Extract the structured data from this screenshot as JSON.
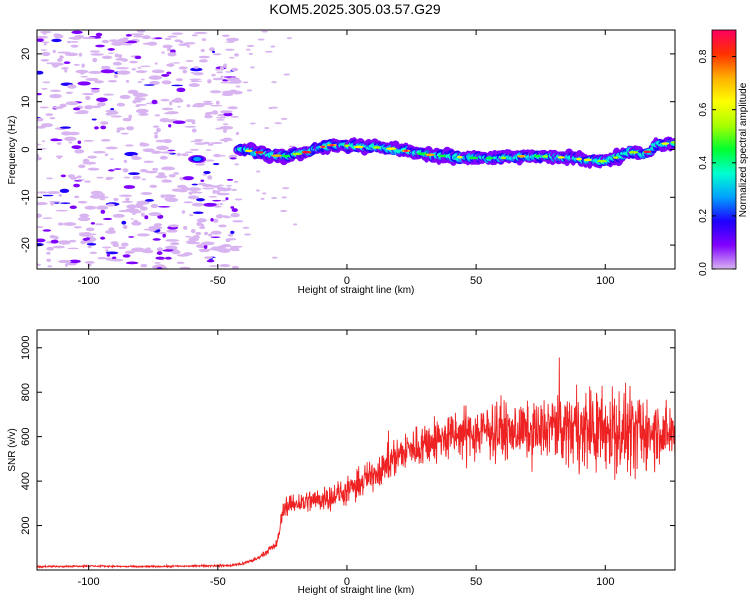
{
  "title": "KOM5.2025.305.03.57.G29",
  "chart_data": [
    {
      "type": "heatmap",
      "name": "spectrogram",
      "xlabel": "Height of straight line (km)",
      "ylabel": "Frequency (Hz)",
      "xlim": [
        -120,
        127
      ],
      "ylim": [
        -25,
        25
      ],
      "xticks": [
        -100,
        -50,
        0,
        50,
        100
      ],
      "xtick_labels": [
        "-100",
        "-50",
        "0",
        "50",
        "100"
      ],
      "yticks": [
        -20,
        -10,
        0,
        10,
        20
      ],
      "ytick_labels": [
        "-20",
        "-10",
        "0",
        "10",
        "20"
      ],
      "colorbar": {
        "label": "Normalized spectral amplitude",
        "range": [
          0,
          0.9
        ],
        "ticks": [
          0.0,
          0.2,
          0.4,
          0.6,
          0.8
        ],
        "tick_labels": [
          "0.0",
          "0.2",
          "0.4",
          "0.6",
          "0.8"
        ],
        "colormap": [
          "#ffffff",
          "#d8b4f0",
          "#8000ff",
          "#1e00ff",
          "#00a0ff",
          "#00ffd0",
          "#00ff30",
          "#a8ff00",
          "#ffff00",
          "#ffb000",
          "#ff3000",
          "#ff0060"
        ]
      },
      "signal_track": {
        "description": "frequency of peak spectral amplitude vs height",
        "x": [
          -42,
          -35,
          -25,
          -15,
          -10,
          -5,
          0,
          5,
          10,
          15,
          20,
          30,
          40,
          50,
          60,
          70,
          80,
          90,
          100,
          105,
          110,
          115,
          120,
          127
        ],
        "y": [
          0,
          -0.5,
          -1.5,
          -0.5,
          0.5,
          1,
          0.8,
          0.5,
          0.5,
          0.3,
          0,
          -1,
          -1.5,
          -1.8,
          -1.8,
          -1.3,
          -1.5,
          -2,
          -2.5,
          -1.5,
          -0.5,
          -1,
          1,
          1.5
        ]
      }
    },
    {
      "type": "line",
      "name": "snr",
      "xlabel": "Height of straight line (km)",
      "ylabel": "SNR (v/v)",
      "xlim": [
        -120,
        127
      ],
      "ylim": [
        0,
        1080
      ],
      "xticks": [
        -100,
        -50,
        0,
        50,
        100
      ],
      "xtick_labels": [
        "-100",
        "-50",
        "0",
        "50",
        "100"
      ],
      "yticks": [
        200,
        400,
        600,
        800,
        1000
      ],
      "ytick_labels": [
        "200",
        "400",
        "600",
        "800",
        "1000"
      ],
      "series": [
        {
          "name": "SNR",
          "color": "#ee2222",
          "x": [
            -120,
            -100,
            -80,
            -60,
            -45,
            -40,
            -35,
            -30,
            -27,
            -25,
            -24,
            -20,
            -10,
            0,
            10,
            20,
            30,
            40,
            50,
            60,
            70,
            80,
            90,
            100,
            110,
            120,
            127
          ],
          "y": [
            15,
            18,
            15,
            18,
            20,
            30,
            50,
            90,
            120,
            260,
            290,
            300,
            320,
            350,
            430,
            520,
            570,
            600,
            620,
            630,
            620,
            640,
            640,
            630,
            610,
            620,
            620
          ],
          "noise_amplitude": [
            4,
            4,
            4,
            4,
            5,
            8,
            10,
            15,
            20,
            40,
            50,
            55,
            60,
            65,
            80,
            95,
            110,
            120,
            125,
            130,
            140,
            160,
            190,
            220,
            200,
            160,
            140
          ]
        }
      ]
    }
  ]
}
